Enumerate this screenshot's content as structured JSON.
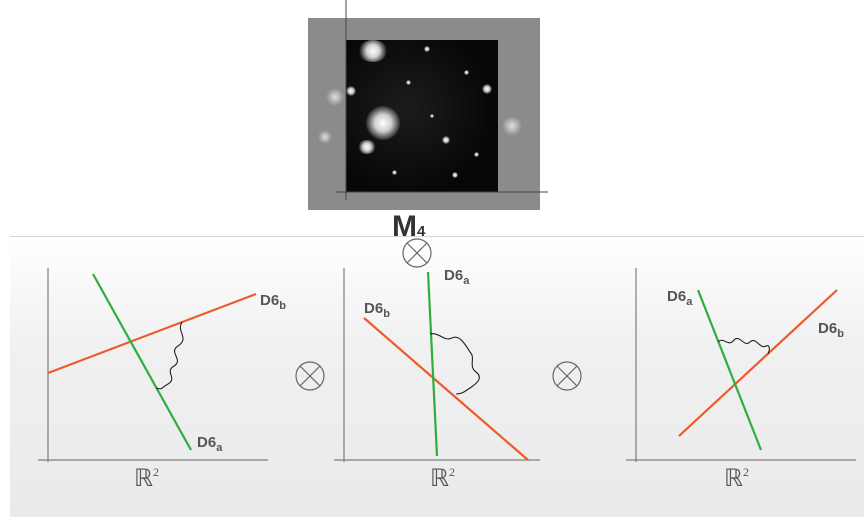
{
  "manifold": {
    "label": "M",
    "subscript": "4"
  },
  "operators": [
    "⊗",
    "⊗",
    "⊗"
  ],
  "plots": [
    {
      "axis_label": "ℝ",
      "axis_exp": "2",
      "brane_a": {
        "name": "D6",
        "sub": "a"
      },
      "brane_b": {
        "name": "D6",
        "sub": "b"
      }
    },
    {
      "axis_label": "ℝ",
      "axis_exp": "2",
      "brane_a": {
        "name": "D6",
        "sub": "a"
      },
      "brane_b": {
        "name": "D6",
        "sub": "b"
      }
    },
    {
      "axis_label": "ℝ",
      "axis_exp": "2",
      "brane_a": {
        "name": "D6",
        "sub": "a"
      },
      "brane_b": {
        "name": "D6",
        "sub": "b"
      }
    }
  ],
  "colors": {
    "brane_a": "#2fae3e",
    "brane_b": "#ec5a2a",
    "axis": "#555555",
    "string": "#222222"
  }
}
